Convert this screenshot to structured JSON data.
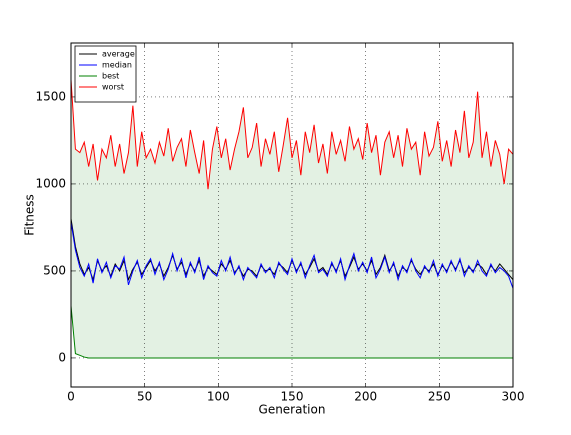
{
  "chart_data": {
    "type": "line",
    "x_label": "Generation",
    "y_label": "Fitness",
    "x": [
      0,
      3,
      6,
      9,
      12,
      15,
      18,
      21,
      24,
      27,
      30,
      33,
      36,
      39,
      42,
      45,
      48,
      51,
      54,
      57,
      60,
      63,
      66,
      69,
      72,
      75,
      78,
      81,
      84,
      87,
      90,
      93,
      96,
      99,
      102,
      105,
      108,
      111,
      114,
      117,
      120,
      123,
      126,
      129,
      132,
      135,
      138,
      141,
      144,
      147,
      150,
      153,
      156,
      159,
      162,
      165,
      168,
      171,
      174,
      177,
      180,
      183,
      186,
      189,
      192,
      195,
      198,
      201,
      204,
      207,
      210,
      213,
      216,
      219,
      222,
      225,
      228,
      231,
      234,
      237,
      240,
      243,
      246,
      249,
      252,
      255,
      258,
      261,
      264,
      267,
      270,
      273,
      276,
      279,
      282,
      285,
      288,
      291,
      294,
      297,
      300
    ],
    "series": [
      {
        "name": "average",
        "color": "#000000",
        "values": [
          800,
          640,
          540,
          480,
          520,
          450,
          560,
          500,
          530,
          470,
          540,
          500,
          560,
          450,
          510,
          550,
          480,
          520,
          560,
          500,
          540,
          470,
          520,
          590,
          510,
          550,
          480,
          540,
          500,
          560,
          470,
          520,
          500,
          480,
          540,
          510,
          560,
          490,
          520,
          470,
          510,
          500,
          470,
          530,
          500,
          510,
          480,
          540,
          520,
          490,
          560,
          500,
          540,
          480,
          520,
          570,
          500,
          520,
          480,
          540,
          500,
          560,
          470,
          520,
          580,
          510,
          540,
          500,
          560,
          480,
          520,
          590,
          500,
          540,
          470,
          520,
          500,
          560,
          510,
          480,
          520,
          500,
          540,
          480,
          530,
          500,
          550,
          510,
          560,
          490,
          520,
          500,
          540,
          520,
          480,
          530,
          500,
          540,
          510,
          480,
          450
        ]
      },
      {
        "name": "median",
        "color": "#0000ff",
        "values": [
          780,
          620,
          520,
          470,
          540,
          430,
          570,
          490,
          550,
          460,
          530,
          510,
          580,
          420,
          500,
          560,
          460,
          530,
          570,
          480,
          550,
          450,
          510,
          600,
          500,
          570,
          460,
          550,
          490,
          580,
          450,
          530,
          490,
          470,
          560,
          500,
          580,
          480,
          530,
          450,
          520,
          490,
          460,
          540,
          490,
          520,
          460,
          550,
          510,
          480,
          570,
          490,
          550,
          460,
          530,
          590,
          490,
          510,
          470,
          550,
          490,
          570,
          450,
          530,
          600,
          500,
          550,
          490,
          580,
          460,
          510,
          580,
          490,
          550,
          450,
          530,
          490,
          570,
          500,
          460,
          530,
          490,
          560,
          470,
          540,
          490,
          560,
          500,
          570,
          470,
          530,
          490,
          560,
          500,
          470,
          540,
          490,
          520,
          500,
          470,
          400
        ]
      },
      {
        "name": "best",
        "color": "#008000",
        "values": [
          300,
          25,
          15,
          5,
          0,
          0,
          0,
          0,
          0,
          0,
          0,
          0,
          0,
          0,
          0,
          0,
          0,
          0,
          0,
          0,
          0,
          0,
          0,
          0,
          0,
          0,
          0,
          0,
          0,
          0,
          0,
          0,
          0,
          0,
          0,
          0,
          0,
          0,
          0,
          0,
          0,
          0,
          0,
          0,
          0,
          0,
          0,
          0,
          0,
          0,
          0,
          0,
          0,
          0,
          0,
          0,
          0,
          0,
          0,
          0,
          0,
          0,
          0,
          0,
          0,
          0,
          0,
          0,
          0,
          0,
          0,
          0,
          0,
          0,
          0,
          0,
          0,
          0,
          0,
          0,
          0,
          0,
          0,
          0,
          0,
          0,
          0,
          0,
          0,
          0,
          0,
          0,
          0,
          0,
          0,
          0,
          0,
          0,
          0,
          0,
          0
        ]
      },
      {
        "name": "worst",
        "color": "#ff0000",
        "values": [
          1600,
          1200,
          1180,
          1240,
          1100,
          1230,
          1020,
          1200,
          1150,
          1280,
          1100,
          1230,
          1060,
          1180,
          1450,
          1100,
          1300,
          1150,
          1200,
          1120,
          1240,
          1160,
          1320,
          1130,
          1210,
          1260,
          1100,
          1310,
          1180,
          1060,
          1250,
          970,
          1200,
          1330,
          1150,
          1260,
          1080,
          1200,
          1300,
          1440,
          1150,
          1210,
          1350,
          1100,
          1260,
          1170,
          1300,
          1070,
          1220,
          1380,
          1150,
          1250,
          1050,
          1300,
          1180,
          1340,
          1120,
          1230,
          1060,
          1300,
          1170,
          1250,
          1130,
          1330,
          1200,
          1260,
          1140,
          1350,
          1180,
          1280,
          1050,
          1240,
          1300,
          1150,
          1280,
          1100,
          1320,
          1200,
          1240,
          1050,
          1300,
          1160,
          1210,
          1360,
          1130,
          1250,
          1100,
          1310,
          1180,
          1420,
          1150,
          1240,
          1530,
          1150,
          1300,
          1100,
          1250,
          1170,
          1000,
          1200,
          1170
        ]
      }
    ],
    "fill_between": [
      2,
      3
    ],
    "fill_color": "#e3f1e3",
    "xlim": [
      0,
      300
    ],
    "xticks": [
      0,
      50,
      100,
      150,
      200,
      250,
      300
    ],
    "ylim": [
      -167,
      1810
    ],
    "yticks": [
      0,
      500,
      1000,
      1500
    ],
    "grid": true,
    "legend": "upper left"
  }
}
